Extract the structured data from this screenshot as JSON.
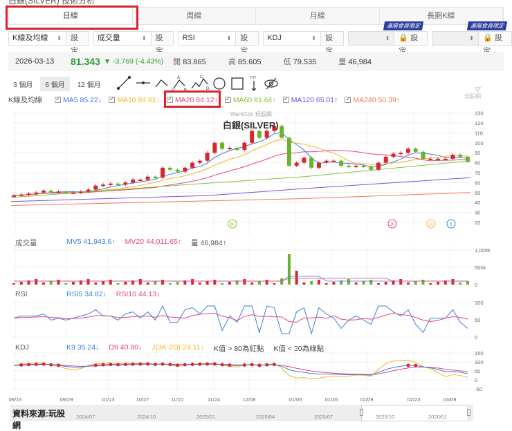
{
  "page_title": "白銀(SILVER) 技術分析",
  "tabs": [
    {
      "label": "日線",
      "active": true
    },
    {
      "label": "周線"
    },
    {
      "label": "月線"
    },
    {
      "label": "長期K線"
    }
  ],
  "selectors": [
    {
      "value": "K線及均線",
      "button": "設定"
    },
    {
      "value": "成交量",
      "button": "設定"
    },
    {
      "value": "RSI",
      "button": "設定"
    },
    {
      "value": "KDJ",
      "button": "設定"
    },
    {
      "value": "",
      "button": "🔒 設定",
      "locked": true,
      "badge": "進階會員限定"
    },
    {
      "value": "",
      "button": "🔒 設定",
      "locked": true,
      "badge": "進階會員限定"
    }
  ],
  "quote": {
    "date": "2026-03-13",
    "price": "81.343",
    "change": "▼ -3.769 (-4.43%)",
    "open_label": "開",
    "open": "83.865",
    "high_label": "高",
    "high": "85.605",
    "low_label": "低",
    "low": "79.535",
    "vol_label": "量",
    "vol": "46,984"
  },
  "periods": [
    {
      "label": "3 個月"
    },
    {
      "label": "6 個月",
      "active": true
    },
    {
      "label": "12 個月"
    }
  ],
  "tools": [
    "trend-line-icon",
    "horizontal-line-icon",
    "angle-icon",
    "abc-pattern-icon",
    "abcde-pattern-icon",
    "circle-icon",
    "rectangle-icon",
    "text-icon",
    "hide-icon"
  ],
  "kline_legend": {
    "label": "K線及均線",
    "items": [
      {
        "text": "MA5 85.22↓",
        "color": "#3b7ddd"
      },
      {
        "text": "MA10 84.81↓",
        "color": "#f5b324"
      },
      {
        "text": "MA20 84.12↑",
        "color": "#e0467a"
      },
      {
        "text": "MA60 81.64↑",
        "color": "#86c232"
      },
      {
        "text": "MA120 65.01↑",
        "color": "#7b4fe0"
      },
      {
        "text": "MA240 50.39↑",
        "color": "#f07a50"
      }
    ]
  },
  "watermark": "WantGoo 玩股網",
  "chart_title": "白銀(SILVER)",
  "vol_legend": {
    "label": "成交量",
    "items": [
      {
        "text": "MV5 41,943.6↑",
        "color": "#3b7ddd"
      },
      {
        "text": "MV20 44,011.65↑",
        "color": "#e0467a"
      },
      {
        "text": "量 46,984↑",
        "color": "#555"
      }
    ]
  },
  "rsi_legend": {
    "label": "RSI",
    "items": [
      {
        "text": "RSI5 34.82↓",
        "color": "#3b7ddd"
      },
      {
        "text": "RSI10 44.13↓",
        "color": "#e0467a"
      }
    ]
  },
  "kdj_legend": {
    "label": "KDJ",
    "items": [
      {
        "text": "K9 35.24↓",
        "color": "#3b7ddd"
      },
      {
        "text": "D9 40.80↓",
        "color": "#e0467a"
      },
      {
        "text": "J(3K-2D) 24.11↓",
        "color": "#f5b324"
      },
      {
        "text": "K值 > 80為紅點",
        "color": "#444"
      },
      {
        "text": "K值 < 20為綠點",
        "color": "#444"
      }
    ]
  },
  "navigator": {
    "source": "資料來源:玩股網",
    "ticks": [
      "2024/07",
      "2024/10",
      "2025/01",
      "2025/04",
      "2025/07",
      "2025/10",
      "2026/01"
    ]
  },
  "chart_data": [
    {
      "type": "candlestick",
      "title": "白銀(SILVER)",
      "x_ticks": [
        "09/15",
        "09/29",
        "10/13",
        "10/27",
        "11/10",
        "11/24",
        "12/08",
        "01/05",
        "01/26",
        "02/09",
        "02/23",
        "03/09"
      ],
      "y_ticks": [
        20,
        30,
        40,
        50,
        60,
        70,
        80,
        90,
        100,
        110,
        120,
        130
      ],
      "close_approx": [
        47,
        48,
        49,
        50,
        52,
        51,
        51,
        50,
        50,
        51,
        53,
        57,
        58,
        59,
        58,
        60,
        63,
        63,
        66,
        65,
        75,
        73,
        71,
        75,
        80,
        82,
        90,
        100,
        94,
        95,
        93,
        100,
        112,
        105,
        112,
        117,
        105,
        77,
        80,
        85,
        75,
        80,
        82,
        82,
        77,
        76,
        77,
        76,
        73,
        80,
        86,
        89,
        90,
        94,
        91,
        84,
        84,
        84,
        84,
        88,
        86,
        81
      ],
      "ma_last": {
        "MA5": 85.22,
        "MA10": 84.81,
        "MA20": 84.12,
        "MA60": 81.64,
        "MA120": 65.01,
        "MA240": 50.39
      },
      "markers": [
        {
          "label": "60",
          "x": "11/24"
        },
        {
          "label": "20",
          "x": "02/16"
        },
        {
          "label": "10",
          "x": "03/02"
        },
        {
          "label": "5",
          "x": "03/09"
        }
      ]
    },
    {
      "type": "bar",
      "title": "成交量",
      "y_ticks": [
        "0",
        "500k",
        "1,000k"
      ],
      "peak": "~900k near 01/05",
      "series": [
        {
          "name": "MV5",
          "last": 41943.6
        },
        {
          "name": "MV20",
          "last": 44011.65
        },
        {
          "name": "量",
          "last": 46984
        }
      ]
    },
    {
      "type": "line",
      "title": "RSI",
      "y_ticks": [
        0,
        50,
        100
      ],
      "series": [
        {
          "name": "RSI5",
          "last": 34.82
        },
        {
          "name": "RSI10",
          "last": 44.13
        }
      ]
    },
    {
      "type": "line",
      "title": "KDJ",
      "y_ticks": [
        -50,
        0,
        50,
        100,
        150
      ],
      "series": [
        {
          "name": "K9",
          "last": 35.24
        },
        {
          "name": "D9",
          "last": 40.8
        },
        {
          "name": "J",
          "last": 24.11
        }
      ]
    }
  ]
}
